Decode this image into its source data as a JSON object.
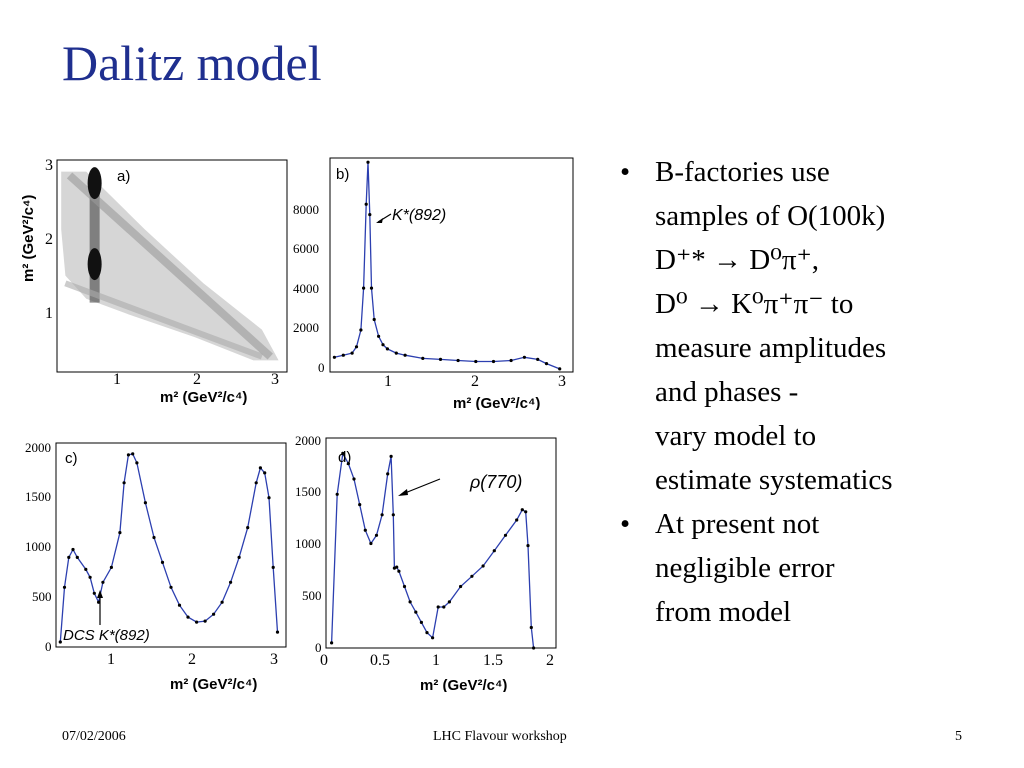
{
  "title": "Dalitz model",
  "footer": {
    "date": "07/02/2006",
    "center": "LHC Flavour workshop",
    "page": "5"
  },
  "bullets": [
    {
      "lines": [
        "B-factories use",
        "samples of O(100k)",
        "D⁺* → D⁰π⁺,",
        "D⁰ → K⁰π⁺π⁻  to",
        "measure amplitudes",
        "and phases -",
        "vary model to",
        "estimate systematics"
      ]
    },
    {
      "lines": [
        "At present not",
        "negligible error",
        "from model"
      ]
    }
  ],
  "panels": {
    "a": {
      "label": "a)",
      "xlabel": "m²  (GeV²/c⁴)",
      "ylabel": "m²  (GeV²/c⁴)",
      "xticks": [
        "1",
        "2",
        "3"
      ],
      "yticks": [
        "1",
        "2",
        "3"
      ]
    },
    "b": {
      "label": "b)",
      "annotation": "K*(892)",
      "xlabel": "m²  (GeV²/c⁴)",
      "xticks": [
        "1",
        "2",
        "3"
      ],
      "yticks": [
        "0",
        "2000",
        "4000",
        "6000",
        "8000"
      ]
    },
    "c": {
      "label": "c)",
      "annotation": "DCS K*(892)",
      "xlabel": "m²  (GeV²/c⁴)",
      "xticks": [
        "1",
        "2",
        "3"
      ],
      "yticks": [
        "0",
        "500",
        "1000",
        "1500",
        "2000"
      ]
    },
    "d": {
      "label": "d)",
      "annotation": "ρ(770)",
      "xlabel": "m²    (GeV²/c⁴)",
      "xticks": [
        "0",
        "0.5",
        "1",
        "1.5",
        "2"
      ],
      "yticks": [
        "0",
        "500",
        "1000",
        "1500",
        "2000"
      ]
    }
  },
  "chart_data": [
    {
      "type": "scatter",
      "panel": "a",
      "description_points": [
        [
          0.5,
          2.7
        ],
        [
          0.8,
          2.85
        ],
        [
          0.8,
          1.8
        ],
        [
          1.5,
          1.5
        ],
        [
          2.0,
          1.2
        ],
        [
          2.5,
          0.8
        ],
        [
          2.9,
          0.5
        ]
      ],
      "xlim": [
        0.35,
        3.1
      ],
      "ylim": [
        0.35,
        3.1
      ]
    },
    {
      "type": "line",
      "panel": "b",
      "x": [
        0.4,
        0.5,
        0.6,
        0.65,
        0.7,
        0.73,
        0.76,
        0.78,
        0.8,
        0.82,
        0.85,
        0.9,
        0.95,
        1.0,
        1.1,
        1.2,
        1.4,
        1.6,
        1.8,
        2.0,
        2.2,
        2.4,
        2.55,
        2.7,
        2.8,
        2.95
      ],
      "y": [
        700,
        800,
        900,
        1200,
        2000,
        4000,
        8000,
        10000,
        7500,
        4000,
        2500,
        1700,
        1300,
        1100,
        900,
        800,
        650,
        600,
        550,
        500,
        500,
        550,
        700,
        600,
        400,
        150
      ],
      "xlim": [
        0.35,
        3.1
      ],
      "ylim": [
        0,
        10200
      ]
    },
    {
      "type": "line",
      "panel": "c",
      "x": [
        0.4,
        0.45,
        0.5,
        0.55,
        0.6,
        0.7,
        0.75,
        0.8,
        0.85,
        0.9,
        1.0,
        1.1,
        1.15,
        1.2,
        1.25,
        1.3,
        1.4,
        1.5,
        1.6,
        1.7,
        1.8,
        1.9,
        2.0,
        2.1,
        2.2,
        2.3,
        2.4,
        2.5,
        2.6,
        2.7,
        2.75,
        2.8,
        2.85,
        2.9,
        2.95
      ],
      "y": [
        50,
        600,
        900,
        980,
        900,
        780,
        700,
        540,
        450,
        650,
        800,
        1150,
        1650,
        1930,
        1940,
        1850,
        1450,
        1100,
        850,
        600,
        420,
        300,
        250,
        260,
        330,
        450,
        650,
        900,
        1200,
        1650,
        1800,
        1750,
        1500,
        800,
        150
      ],
      "xlim": [
        0.35,
        3.05
      ],
      "ylim": [
        0,
        2050
      ]
    },
    {
      "type": "line",
      "panel": "d",
      "x": [
        0.05,
        0.1,
        0.15,
        0.2,
        0.25,
        0.3,
        0.35,
        0.4,
        0.45,
        0.5,
        0.55,
        0.58,
        0.6,
        0.61,
        0.63,
        0.65,
        0.7,
        0.75,
        0.8,
        0.85,
        0.9,
        0.95,
        1.0,
        1.05,
        1.1,
        1.2,
        1.3,
        1.4,
        1.5,
        1.6,
        1.7,
        1.75,
        1.78,
        1.8,
        1.83,
        1.85
      ],
      "y": [
        50,
        1500,
        1900,
        1800,
        1650,
        1400,
        1150,
        1020,
        1100,
        1300,
        1700,
        1870,
        1300,
        780,
        790,
        750,
        600,
        450,
        350,
        250,
        150,
        100,
        400,
        400,
        450,
        600,
        700,
        800,
        950,
        1100,
        1250,
        1350,
        1330,
        1000,
        200,
        0
      ],
      "xlim": [
        0,
        2.05
      ],
      "ylim": [
        0,
        2050
      ]
    }
  ]
}
